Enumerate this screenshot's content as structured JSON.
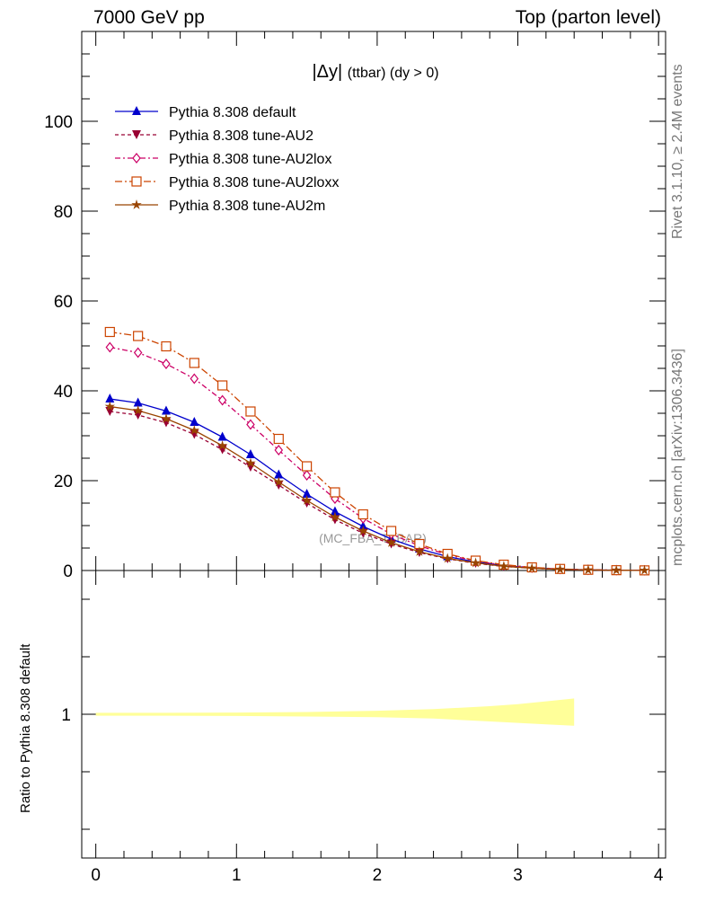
{
  "header": {
    "left": "7000 GeV pp",
    "right": "Top (parton level)"
  },
  "side": {
    "rivet": "Rivet 3.1.10, ≥ 2.4M events",
    "mcplots": "mcplots.cern.ch [arXiv:1306.3436]"
  },
  "chart_data": {
    "type": "line",
    "title_main": "|Δy|",
    "title_sub": "(ttbar) (dy > 0)",
    "watermark": "(MC_FBA_TTBAR)",
    "xlim": [
      -0.1,
      4.05
    ],
    "ylim": [
      0,
      120
    ],
    "yticks": [
      0,
      20,
      40,
      60,
      80,
      100
    ],
    "xticks": [
      0,
      1,
      2,
      3,
      4
    ],
    "x": [
      0.1,
      0.3,
      0.5,
      0.7,
      0.9,
      1.1,
      1.3,
      1.5,
      1.7,
      1.9,
      2.1,
      2.3,
      2.5,
      2.7,
      2.9,
      3.1,
      3.3,
      3.5,
      3.7,
      3.9
    ],
    "legend_position": "top-left",
    "series": [
      {
        "name": "Pythia 8.308 default",
        "color": "#0000cc",
        "marker": "triangle-up",
        "dash": "solid",
        "values": [
          38.2,
          37.3,
          35.5,
          33.0,
          29.7,
          25.8,
          21.3,
          17.0,
          13.1,
          9.8,
          7.0,
          4.8,
          3.1,
          1.9,
          1.1,
          0.6,
          0.3,
          0.15,
          0.07,
          0.03
        ]
      },
      {
        "name": "Pythia 8.308 tune-AU2",
        "color": "#990033",
        "marker": "triangle-down",
        "dash": "4,3",
        "values": [
          35.4,
          34.6,
          32.9,
          30.3,
          26.9,
          23.0,
          19.0,
          15.0,
          11.3,
          8.3,
          5.9,
          4.0,
          2.6,
          1.6,
          0.9,
          0.5,
          0.25,
          0.12,
          0.05,
          0.02
        ]
      },
      {
        "name": "Pythia 8.308 tune-AU2lox",
        "color": "#cc0066",
        "marker": "diamond-open",
        "dash": "6,3,2,3",
        "values": [
          49.7,
          48.5,
          46.0,
          42.7,
          37.9,
          32.5,
          26.8,
          21.2,
          16.0,
          11.6,
          8.1,
          5.5,
          3.5,
          2.1,
          1.2,
          0.65,
          0.32,
          0.15,
          0.07,
          0.03
        ]
      },
      {
        "name": "Pythia 8.308 tune-AU2loxx",
        "color": "#cc4400",
        "marker": "square-open",
        "dash": "8,3,2,3",
        "values": [
          53.1,
          52.2,
          49.9,
          46.2,
          41.2,
          35.4,
          29.3,
          23.2,
          17.4,
          12.5,
          8.8,
          5.9,
          3.7,
          2.2,
          1.3,
          0.7,
          0.35,
          0.16,
          0.07,
          0.03
        ]
      },
      {
        "name": "Pythia 8.308 tune-AU2m",
        "color": "#994400",
        "marker": "star",
        "dash": "solid",
        "values": [
          36.5,
          35.6,
          33.8,
          31.2,
          27.8,
          23.9,
          19.7,
          15.6,
          11.9,
          8.8,
          6.2,
          4.2,
          2.7,
          1.7,
          0.95,
          0.5,
          0.25,
          0.12,
          0.05,
          0.02
        ]
      }
    ],
    "ratio": {
      "ylabel": "Ratio to Pythia 8.308 default",
      "yticks": [
        1
      ],
      "ylim": [
        0.5,
        1.5
      ],
      "band_color": "#ffff99",
      "band_x": [
        0.0,
        0.5,
        1.0,
        1.5,
        2.0,
        2.4,
        2.8,
        3.0,
        3.2,
        3.4
      ],
      "band_lo": [
        0.995,
        0.995,
        0.994,
        0.992,
        0.99,
        0.985,
        0.975,
        0.97,
        0.965,
        0.96
      ],
      "band_hi": [
        1.005,
        1.005,
        1.006,
        1.008,
        1.012,
        1.018,
        1.028,
        1.035,
        1.045,
        1.055
      ]
    }
  }
}
